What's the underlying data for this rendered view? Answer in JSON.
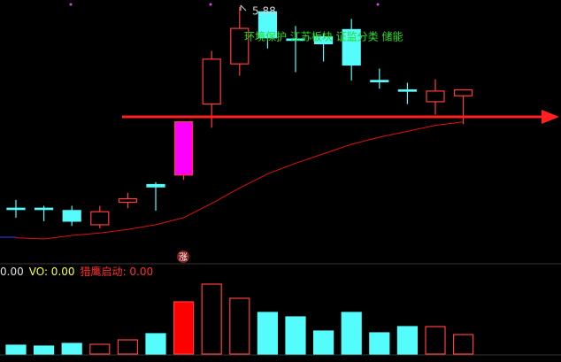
{
  "chart_data": {
    "type": "candlestick",
    "high_label": "5.88",
    "tags": "环境保护 江苏板块 证监分类 储能",
    "badge": "涨",
    "ylim": [
      3.77,
      5.94
    ],
    "up_color": "#ff3c3c",
    "down_color": "#54fcfc",
    "limit_color": "#ff00ff",
    "kinds": [
      "down",
      "down",
      "down",
      "up",
      "up",
      "down",
      "limit",
      "up",
      "up",
      "down",
      "down",
      "down",
      "down",
      "down",
      "down",
      "up",
      "up"
    ],
    "open": [
      4.18,
      4.18,
      4.16,
      4.04,
      4.23,
      4.38,
      4.46,
      5.06,
      5.4,
      5.84,
      5.61,
      5.63,
      5.69,
      5.26,
      5.18,
      5.08,
      5.13
    ],
    "close": [
      4.18,
      4.18,
      4.07,
      4.15,
      4.26,
      4.36,
      4.91,
      5.44,
      5.7,
      5.62,
      5.61,
      5.57,
      5.39,
      5.26,
      5.18,
      5.17,
      5.18
    ],
    "high": [
      4.25,
      4.2,
      4.2,
      4.2,
      4.31,
      4.4,
      4.91,
      5.51,
      5.88,
      5.84,
      5.72,
      5.66,
      5.78,
      5.36,
      5.24,
      5.27,
      5.18
    ],
    "low": [
      4.1,
      4.07,
      4.03,
      4.01,
      4.18,
      4.16,
      4.42,
      4.86,
      5.3,
      5.53,
      5.33,
      5.42,
      5.26,
      5.19,
      5.06,
      4.97,
      4.89
    ],
    "ma": {
      "color": "#e01010",
      "values": [
        3.93,
        3.92,
        3.95,
        3.97,
        4.0,
        4.04,
        4.1,
        4.22,
        4.35,
        4.47,
        4.56,
        4.64,
        4.72,
        4.78,
        4.83,
        4.88,
        4.91
      ]
    },
    "volume": {
      "ylim": [
        0,
        85
      ],
      "values": [
        10,
        9,
        12,
        11,
        16,
        23,
        59,
        79,
        63,
        47,
        42,
        26,
        47,
        24,
        31,
        31,
        22
      ],
      "indicators": [
        {
          "text": "0.00",
          "color": "#e0e0e0"
        },
        {
          "text": "VO: 0.00",
          "color": "#ffff40"
        },
        {
          "text": "猎鹰启动: 0.00",
          "color": "#ff3030"
        }
      ]
    }
  }
}
